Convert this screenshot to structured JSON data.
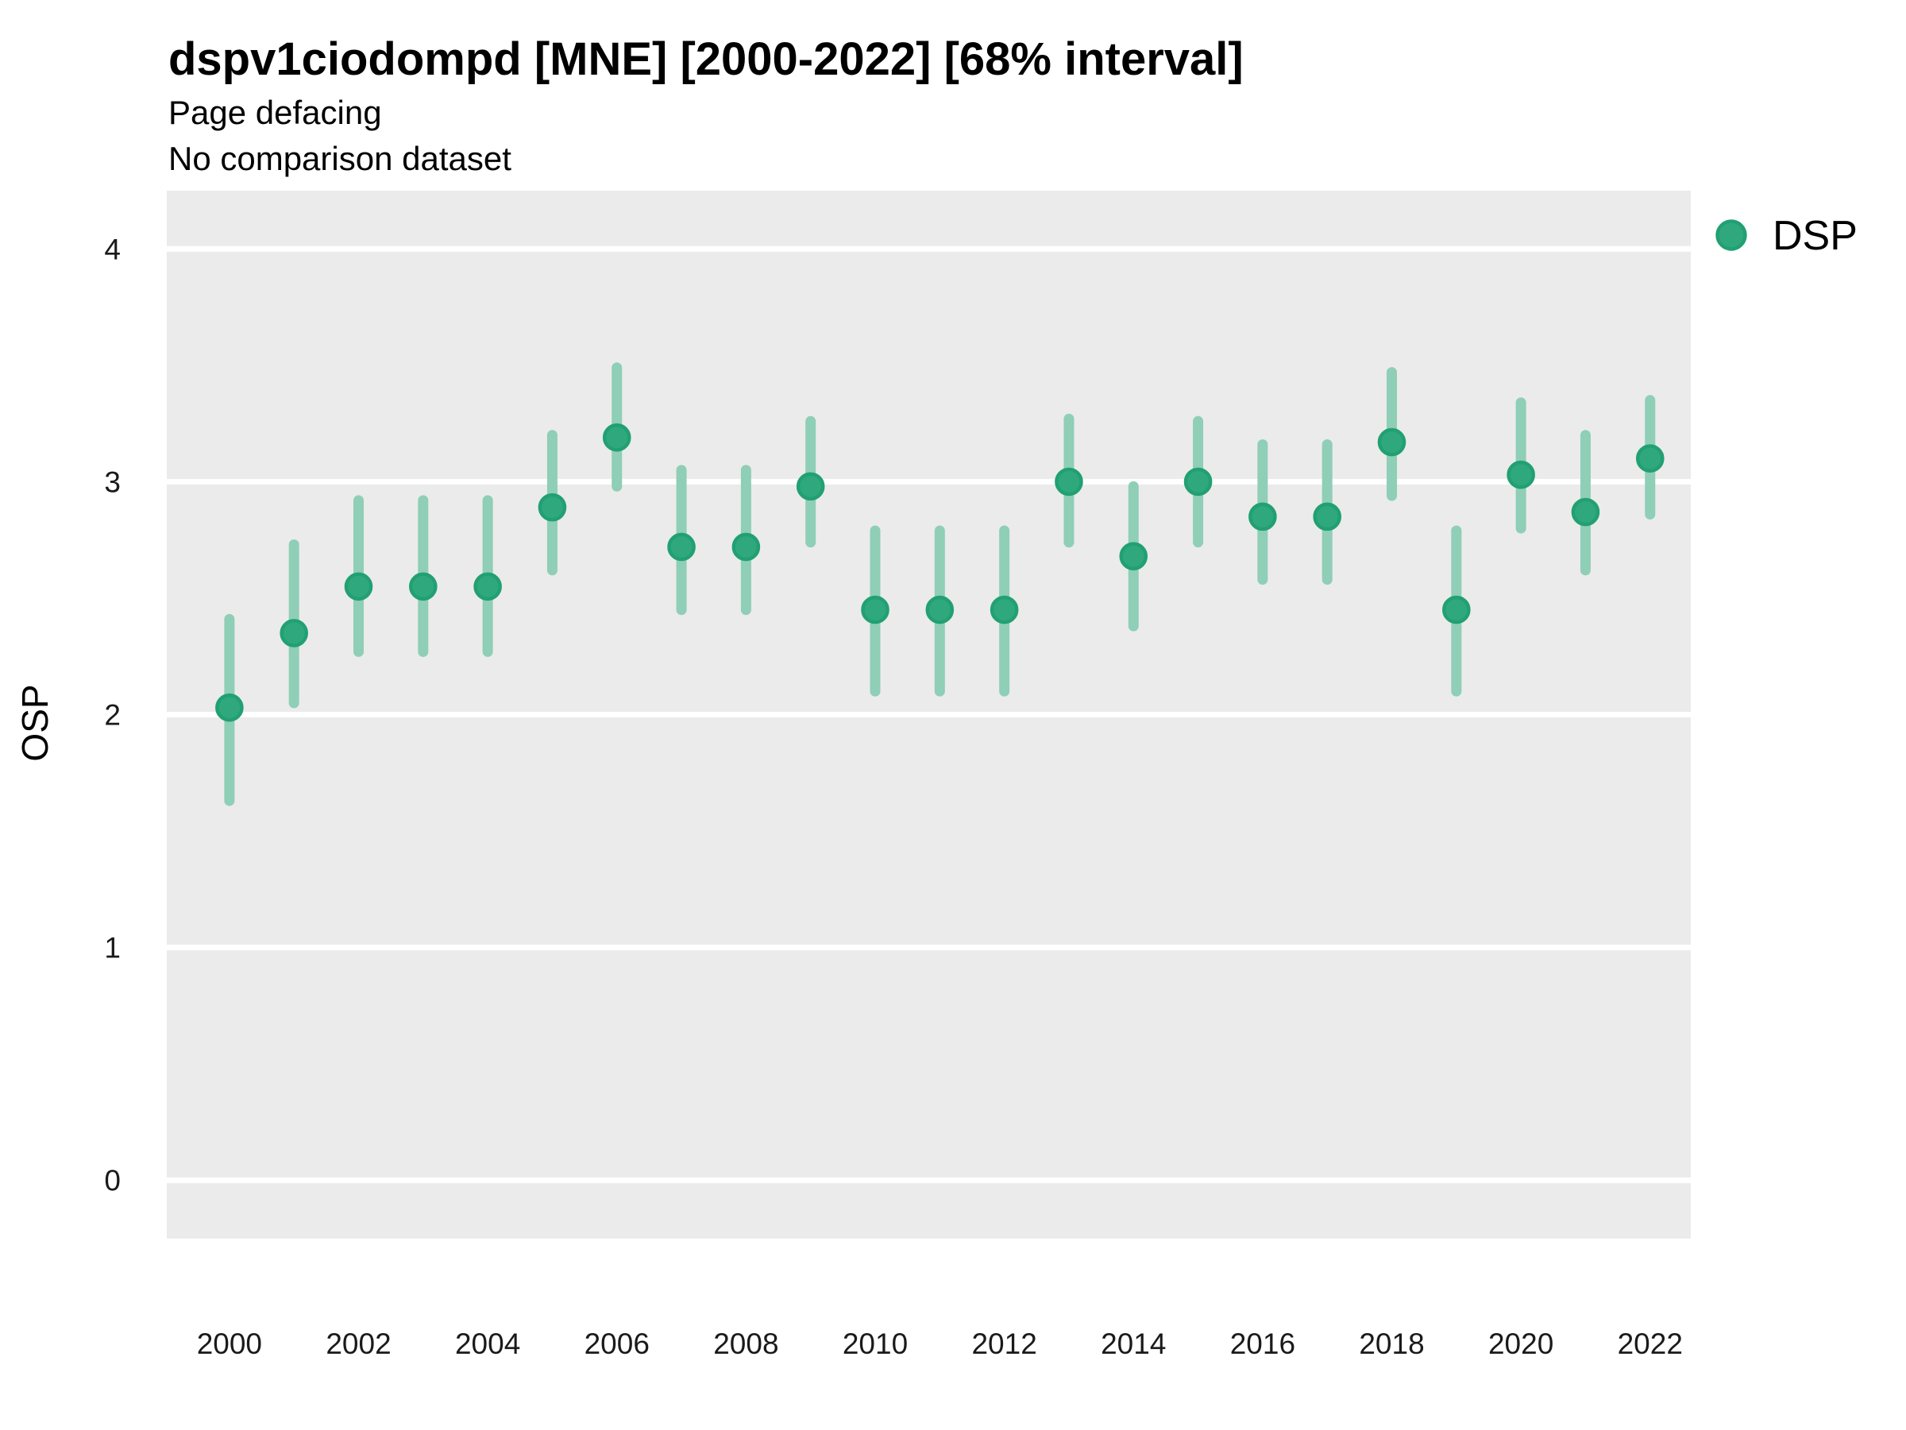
{
  "header": {
    "title": "dspv1ciodompd [MNE] [2000-2022] [68% interval]",
    "subtitle": "Page defacing",
    "note": "No comparison dataset"
  },
  "legend": {
    "position": "top-right",
    "items": [
      {
        "label": "DSP",
        "marker": "circle",
        "color": "#2FA87E"
      }
    ]
  },
  "colors": {
    "point_fill": "#2FA87E",
    "point_stroke": "#21A073",
    "interval_bar": "#8FCEB7",
    "panel_background": "#EBEBEB",
    "gridline": "#FFFFFF",
    "text": "#000000",
    "page_background": "#FFFFFF"
  },
  "chart_data": {
    "type": "scatter",
    "title": "dspv1ciodompd [MNE] [2000-2022] [68% interval]",
    "subtitle": "Page defacing",
    "note": "No comparison dataset",
    "xlabel": "",
    "ylabel": "OSP",
    "interval_label": "68% interval",
    "grid": "major horizontal, white on gray panel",
    "legend_position": "top-right",
    "x": [
      2000,
      2001,
      2002,
      2003,
      2004,
      2005,
      2006,
      2007,
      2008,
      2009,
      2010,
      2011,
      2012,
      2013,
      2014,
      2015,
      2016,
      2017,
      2018,
      2019,
      2020,
      2021,
      2022
    ],
    "series": [
      {
        "name": "DSP",
        "values": [
          2.03,
          2.35,
          2.55,
          2.55,
          2.55,
          2.89,
          3.19,
          2.72,
          2.72,
          2.98,
          2.45,
          2.45,
          2.45,
          3.0,
          2.68,
          3.0,
          2.85,
          2.85,
          3.17,
          2.45,
          3.03,
          2.87,
          3.1
        ],
        "interval_low": [
          1.63,
          2.05,
          2.27,
          2.27,
          2.27,
          2.62,
          2.98,
          2.45,
          2.45,
          2.74,
          2.1,
          2.1,
          2.1,
          2.74,
          2.38,
          2.74,
          2.58,
          2.58,
          2.94,
          2.1,
          2.8,
          2.62,
          2.86
        ],
        "interval_high": [
          2.41,
          2.73,
          2.92,
          2.92,
          2.92,
          3.2,
          3.49,
          3.05,
          3.05,
          3.26,
          2.79,
          2.79,
          2.79,
          3.27,
          2.98,
          3.26,
          3.16,
          3.16,
          3.47,
          2.79,
          3.34,
          3.2,
          3.35
        ]
      }
    ],
    "xticks": [
      2000,
      2002,
      2004,
      2006,
      2008,
      2010,
      2012,
      2014,
      2016,
      2018,
      2020,
      2022
    ],
    "yticks": [
      0,
      1,
      2,
      3,
      4
    ],
    "ylim": [
      -0.25,
      4.25
    ],
    "xlim": [
      1999.03,
      2022.63
    ]
  }
}
